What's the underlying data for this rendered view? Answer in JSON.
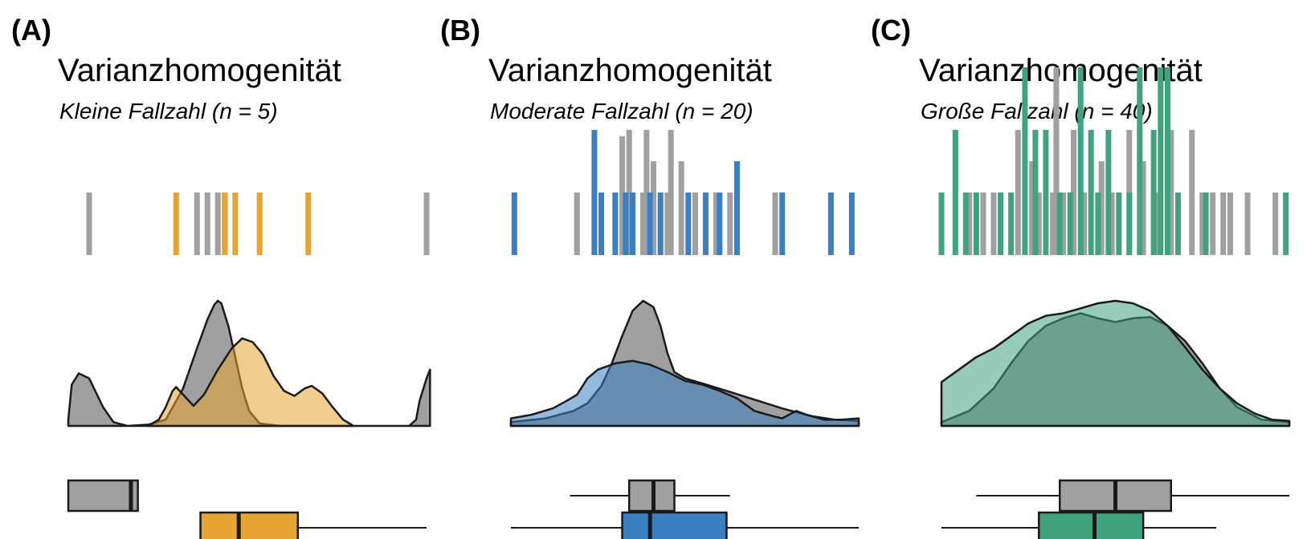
{
  "colors": {
    "reference": "#a0a0a0",
    "outline": "#1a1a1a",
    "panel_A": "#e6a532",
    "panel_B": "#3a7fc1",
    "panel_C": "#3fa37e"
  },
  "chart_data": [
    {
      "type": "rug-density-boxplot",
      "label": "(A)",
      "title": "Varianzhomogenität",
      "subtitle": "Kleine Fallzahl (n = 5)",
      "xlim": [
        0,
        100
      ],
      "color_key": "panel_A",
      "series": [
        {
          "role": "reference",
          "rug": [
            {
              "x": 3,
              "h": 1
            },
            {
              "x": 34,
              "h": 1
            },
            {
              "x": 37,
              "h": 1
            },
            {
              "x": 40,
              "h": 1
            },
            {
              "x": 42,
              "h": 1
            },
            {
              "x": 100,
              "h": 1
            }
          ],
          "density": [
            [
              -3,
              0.05
            ],
            [
              -2,
              0.33
            ],
            [
              0,
              0.42
            ],
            [
              3,
              0.38
            ],
            [
              7,
              0.15
            ],
            [
              10,
              0.03
            ],
            [
              14,
              0.0
            ],
            [
              20,
              0.01
            ],
            [
              25,
              0.05
            ],
            [
              30,
              0.3
            ],
            [
              34,
              0.62
            ],
            [
              37,
              0.85
            ],
            [
              39,
              0.97
            ],
            [
              40,
              1.0
            ],
            [
              41,
              0.98
            ],
            [
              43,
              0.8
            ],
            [
              45,
              0.55
            ],
            [
              47,
              0.3
            ],
            [
              49,
              0.12
            ],
            [
              52,
              0.02
            ],
            [
              58,
              0.0
            ],
            [
              80,
              0.0
            ],
            [
              95,
              0.0
            ],
            [
              97,
              0.05
            ],
            [
              98,
              0.2
            ],
            [
              100,
              0.38
            ],
            [
              101,
              0.45
            ]
          ],
          "box": {
            "min": -3,
            "q1": -3,
            "median": 15,
            "q3": 17,
            "max": 17
          }
        },
        {
          "role": "group",
          "rug": [
            {
              "x": 28,
              "h": 1
            },
            {
              "x": 42,
              "h": 1
            },
            {
              "x": 45,
              "h": 1
            },
            {
              "x": 52,
              "h": 1
            },
            {
              "x": 66,
              "h": 1
            }
          ],
          "density": [
            [
              20,
              0.0
            ],
            [
              23,
              0.05
            ],
            [
              25,
              0.15
            ],
            [
              27,
              0.28
            ],
            [
              28,
              0.31
            ],
            [
              30,
              0.25
            ],
            [
              33,
              0.16
            ],
            [
              36,
              0.25
            ],
            [
              40,
              0.45
            ],
            [
              44,
              0.62
            ],
            [
              47,
              0.7
            ],
            [
              50,
              0.67
            ],
            [
              53,
              0.57
            ],
            [
              56,
              0.4
            ],
            [
              59,
              0.28
            ],
            [
              62,
              0.24
            ],
            [
              65,
              0.3
            ],
            [
              67,
              0.32
            ],
            [
              70,
              0.26
            ],
            [
              73,
              0.15
            ],
            [
              76,
              0.05
            ],
            [
              79,
              0.0
            ]
          ],
          "box": {
            "min": 35,
            "q1": 35,
            "median": 46,
            "q3": 63,
            "max": 100
          }
        }
      ]
    },
    {
      "type": "rug-density-boxplot",
      "label": "(B)",
      "title": "Varianzhomogenität",
      "subtitle": "Moderate Fallzahl (n = 20)",
      "xlim": [
        0,
        100
      ],
      "color_key": "panel_B",
      "series": [
        {
          "role": "reference",
          "rug": [
            {
              "x": 19,
              "h": 1
            },
            {
              "x": 24,
              "h": 1
            },
            {
              "x": 32,
              "h": 1.9
            },
            {
              "x": 34,
              "h": 2
            },
            {
              "x": 38,
              "h": 1
            },
            {
              "x": 39,
              "h": 2
            },
            {
              "x": 41,
              "h": 1.5
            },
            {
              "x": 45,
              "h": 1
            },
            {
              "x": 46,
              "h": 2
            },
            {
              "x": 49,
              "h": 1.5
            },
            {
              "x": 53,
              "h": 1
            },
            {
              "x": 59,
              "h": 1
            },
            {
              "x": 63,
              "h": 1
            },
            {
              "x": 76,
              "h": 1
            }
          ],
          "density": [
            [
              0,
              0.03
            ],
            [
              10,
              0.06
            ],
            [
              18,
              0.12
            ],
            [
              22,
              0.18
            ],
            [
              26,
              0.32
            ],
            [
              29,
              0.5
            ],
            [
              32,
              0.72
            ],
            [
              35,
              0.92
            ],
            [
              38,
              1.0
            ],
            [
              41,
              0.95
            ],
            [
              43,
              0.8
            ],
            [
              45,
              0.58
            ],
            [
              47,
              0.43
            ],
            [
              50,
              0.38
            ],
            [
              55,
              0.34
            ],
            [
              62,
              0.28
            ],
            [
              70,
              0.21
            ],
            [
              78,
              0.14
            ],
            [
              86,
              0.08
            ],
            [
              93,
              0.05
            ],
            [
              100,
              0.04
            ]
          ],
          "box": {
            "min": 17,
            "q1": 34,
            "median": 41,
            "q3": 47,
            "max": 63
          }
        },
        {
          "role": "group",
          "rug": [
            {
              "x": 1,
              "h": 1
            },
            {
              "x": 24,
              "h": 2
            },
            {
              "x": 26,
              "h": 1
            },
            {
              "x": 30,
              "h": 1
            },
            {
              "x": 33,
              "h": 1
            },
            {
              "x": 35,
              "h": 1
            },
            {
              "x": 40,
              "h": 1
            },
            {
              "x": 43,
              "h": 1
            },
            {
              "x": 51,
              "h": 1
            },
            {
              "x": 56,
              "h": 1
            },
            {
              "x": 60,
              "h": 1
            },
            {
              "x": 65,
              "h": 1.5
            },
            {
              "x": 78,
              "h": 1
            },
            {
              "x": 92,
              "h": 1
            },
            {
              "x": 98,
              "h": 1
            }
          ],
          "density": [
            [
              0,
              0.06
            ],
            [
              6,
              0.09
            ],
            [
              12,
              0.14
            ],
            [
              16,
              0.2
            ],
            [
              19,
              0.25
            ],
            [
              22,
              0.38
            ],
            [
              25,
              0.45
            ],
            [
              30,
              0.5
            ],
            [
              35,
              0.52
            ],
            [
              40,
              0.49
            ],
            [
              45,
              0.43
            ],
            [
              50,
              0.36
            ],
            [
              55,
              0.33
            ],
            [
              60,
              0.28
            ],
            [
              65,
              0.22
            ],
            [
              70,
              0.12
            ],
            [
              75,
              0.08
            ],
            [
              78,
              0.06
            ],
            [
              82,
              0.12
            ],
            [
              85,
              0.09
            ],
            [
              90,
              0.05
            ],
            [
              95,
              0.05
            ],
            [
              100,
              0.06
            ]
          ],
          "box": {
            "min": 0,
            "q1": 32,
            "median": 40,
            "q3": 62,
            "max": 100
          }
        }
      ]
    },
    {
      "type": "rug-density-boxplot",
      "label": "(C)",
      "title": "Varianzhomogenität",
      "subtitle": "Große Fallzahl (n = 40)",
      "xlim": [
        0,
        100
      ],
      "color_key": "panel_C",
      "series": [
        {
          "role": "reference",
          "rug": [
            {
              "x": 8,
              "h": 1
            },
            {
              "x": 12,
              "h": 1
            },
            {
              "x": 15,
              "h": 1
            },
            {
              "x": 22,
              "h": 2
            },
            {
              "x": 26,
              "h": 1.5
            },
            {
              "x": 28,
              "h": 1
            },
            {
              "x": 32,
              "h": 1
            },
            {
              "x": 33,
              "h": 3
            },
            {
              "x": 35,
              "h": 1
            },
            {
              "x": 38,
              "h": 2
            },
            {
              "x": 41,
              "h": 1
            },
            {
              "x": 46,
              "h": 1.5
            },
            {
              "x": 49,
              "h": 1
            },
            {
              "x": 54,
              "h": 2
            },
            {
              "x": 58,
              "h": 1.5
            },
            {
              "x": 62,
              "h": 1
            },
            {
              "x": 66,
              "h": 2
            },
            {
              "x": 72,
              "h": 2
            },
            {
              "x": 75,
              "h": 1
            },
            {
              "x": 78,
              "h": 1
            },
            {
              "x": 81,
              "h": 1
            },
            {
              "x": 83,
              "h": 1
            },
            {
              "x": 88,
              "h": 1
            },
            {
              "x": 96,
              "h": 1
            }
          ],
          "density": [
            [
              0,
              0.03
            ],
            [
              8,
              0.12
            ],
            [
              15,
              0.3
            ],
            [
              20,
              0.5
            ],
            [
              25,
              0.68
            ],
            [
              30,
              0.8
            ],
            [
              35,
              0.86
            ],
            [
              40,
              0.9
            ],
            [
              45,
              0.86
            ],
            [
              50,
              0.83
            ],
            [
              55,
              0.86
            ],
            [
              60,
              0.87
            ],
            [
              65,
              0.8
            ],
            [
              70,
              0.68
            ],
            [
              75,
              0.5
            ],
            [
              80,
              0.3
            ],
            [
              85,
              0.15
            ],
            [
              92,
              0.05
            ],
            [
              100,
              0.03
            ]
          ],
          "box": {
            "min": 10,
            "q1": 34,
            "median": 50,
            "q3": 66,
            "max": 100
          }
        },
        {
          "role": "group",
          "rug": [
            {
              "x": 0,
              "h": 1
            },
            {
              "x": 4,
              "h": 2
            },
            {
              "x": 7,
              "h": 1
            },
            {
              "x": 10,
              "h": 1
            },
            {
              "x": 17,
              "h": 1
            },
            {
              "x": 20,
              "h": 1
            },
            {
              "x": 24,
              "h": 3
            },
            {
              "x": 27,
              "h": 2
            },
            {
              "x": 30,
              "h": 2
            },
            {
              "x": 34,
              "h": 1
            },
            {
              "x": 37,
              "h": 1
            },
            {
              "x": 40,
              "h": 3
            },
            {
              "x": 43,
              "h": 2
            },
            {
              "x": 45,
              "h": 1
            },
            {
              "x": 48,
              "h": 2
            },
            {
              "x": 51,
              "h": 1
            },
            {
              "x": 54,
              "h": 1
            },
            {
              "x": 57,
              "h": 3
            },
            {
              "x": 61,
              "h": 2
            },
            {
              "x": 63,
              "h": 3
            },
            {
              "x": 65,
              "h": 3
            },
            {
              "x": 68,
              "h": 1
            },
            {
              "x": 76,
              "h": 1
            },
            {
              "x": 99,
              "h": 1
            }
          ],
          "density": [
            [
              0,
              0.35
            ],
            [
              5,
              0.45
            ],
            [
              10,
              0.55
            ],
            [
              15,
              0.62
            ],
            [
              20,
              0.72
            ],
            [
              25,
              0.82
            ],
            [
              30,
              0.88
            ],
            [
              35,
              0.9
            ],
            [
              40,
              0.94
            ],
            [
              45,
              0.98
            ],
            [
              50,
              1.0
            ],
            [
              55,
              0.98
            ],
            [
              60,
              0.92
            ],
            [
              65,
              0.8
            ],
            [
              70,
              0.63
            ],
            [
              75,
              0.45
            ],
            [
              80,
              0.3
            ],
            [
              85,
              0.18
            ],
            [
              90,
              0.1
            ],
            [
              95,
              0.05
            ],
            [
              100,
              0.04
            ]
          ],
          "box": {
            "min": 0,
            "q1": 28,
            "median": 44,
            "q3": 58,
            "max": 79
          }
        }
      ]
    }
  ]
}
